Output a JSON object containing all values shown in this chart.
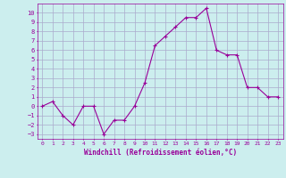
{
  "x": [
    0,
    1,
    2,
    3,
    4,
    5,
    6,
    7,
    8,
    9,
    10,
    11,
    12,
    13,
    14,
    15,
    16,
    17,
    18,
    19,
    20,
    21,
    22,
    23
  ],
  "y": [
    0,
    0.5,
    -1,
    -2,
    0,
    0,
    -3,
    -1.5,
    -1.5,
    0,
    2.5,
    6.5,
    7.5,
    8.5,
    9.5,
    9.5,
    10.5,
    6,
    5.5,
    5.5,
    2,
    2,
    1,
    1
  ],
  "line_color": "#990099",
  "marker": "+",
  "bg_color": "#cceeee",
  "grid_color": "#aaaacc",
  "xlabel": "Windchill (Refroidissement éolien,°C)",
  "xlabel_color": "#990099",
  "tick_color": "#990099",
  "yticks": [
    -3,
    -2,
    -1,
    0,
    1,
    2,
    3,
    4,
    5,
    6,
    7,
    8,
    9,
    10
  ],
  "ylim": [
    -3.5,
    11.0
  ],
  "xlim": [
    -0.5,
    23.5
  ]
}
